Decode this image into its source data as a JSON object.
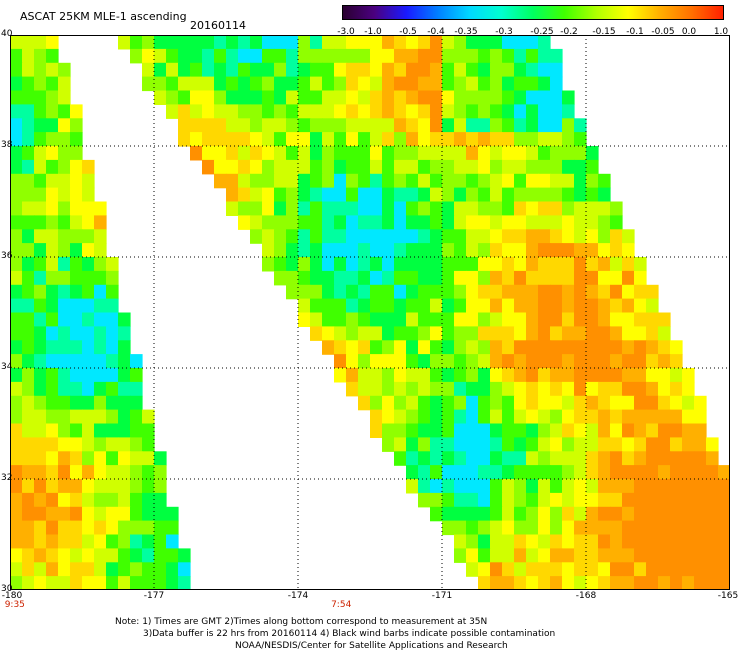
{
  "header": {
    "title": "ASCAT 25KM MLE-1 ascending",
    "date": "20160114"
  },
  "colorbar": {
    "labels": [
      "-3.0",
      "-1.0",
      "-0.5",
      "-0.4",
      "-0.35",
      "-0.3",
      "-0.25",
      "-0.2",
      "-0.15",
      "-0.1",
      "-0.05",
      "0.0",
      "1.0"
    ],
    "colors": [
      "#2a0030",
      "#4b0080",
      "#1a1aff",
      "#0080ff",
      "#00d8ff",
      "#00ffd0",
      "#00ff60",
      "#40ff00",
      "#b0ff00",
      "#ffff00",
      "#ffb000",
      "#ff7000",
      "#ff2000"
    ]
  },
  "map": {
    "lat_labels": [
      "40",
      "38",
      "36",
      "34",
      "32",
      "30"
    ],
    "lon_labels": [
      "-180",
      "-177",
      "-174",
      "-171",
      "-168",
      "-165"
    ],
    "time_labels": [
      "9:35",
      "7:54"
    ],
    "lat_range": [
      30,
      40
    ],
    "lon_range": [
      -180,
      -165
    ]
  },
  "notes": [
    "Note: 1) Times are GMT 2)Times along bottom correspond to measurement at 35N",
    "3)Data buffer is 22 hrs from 20160114 4) Black wind barbs indicate possible contamination",
    "NOAA/NESDIS/Center for Satellite Applications and Research"
  ]
}
